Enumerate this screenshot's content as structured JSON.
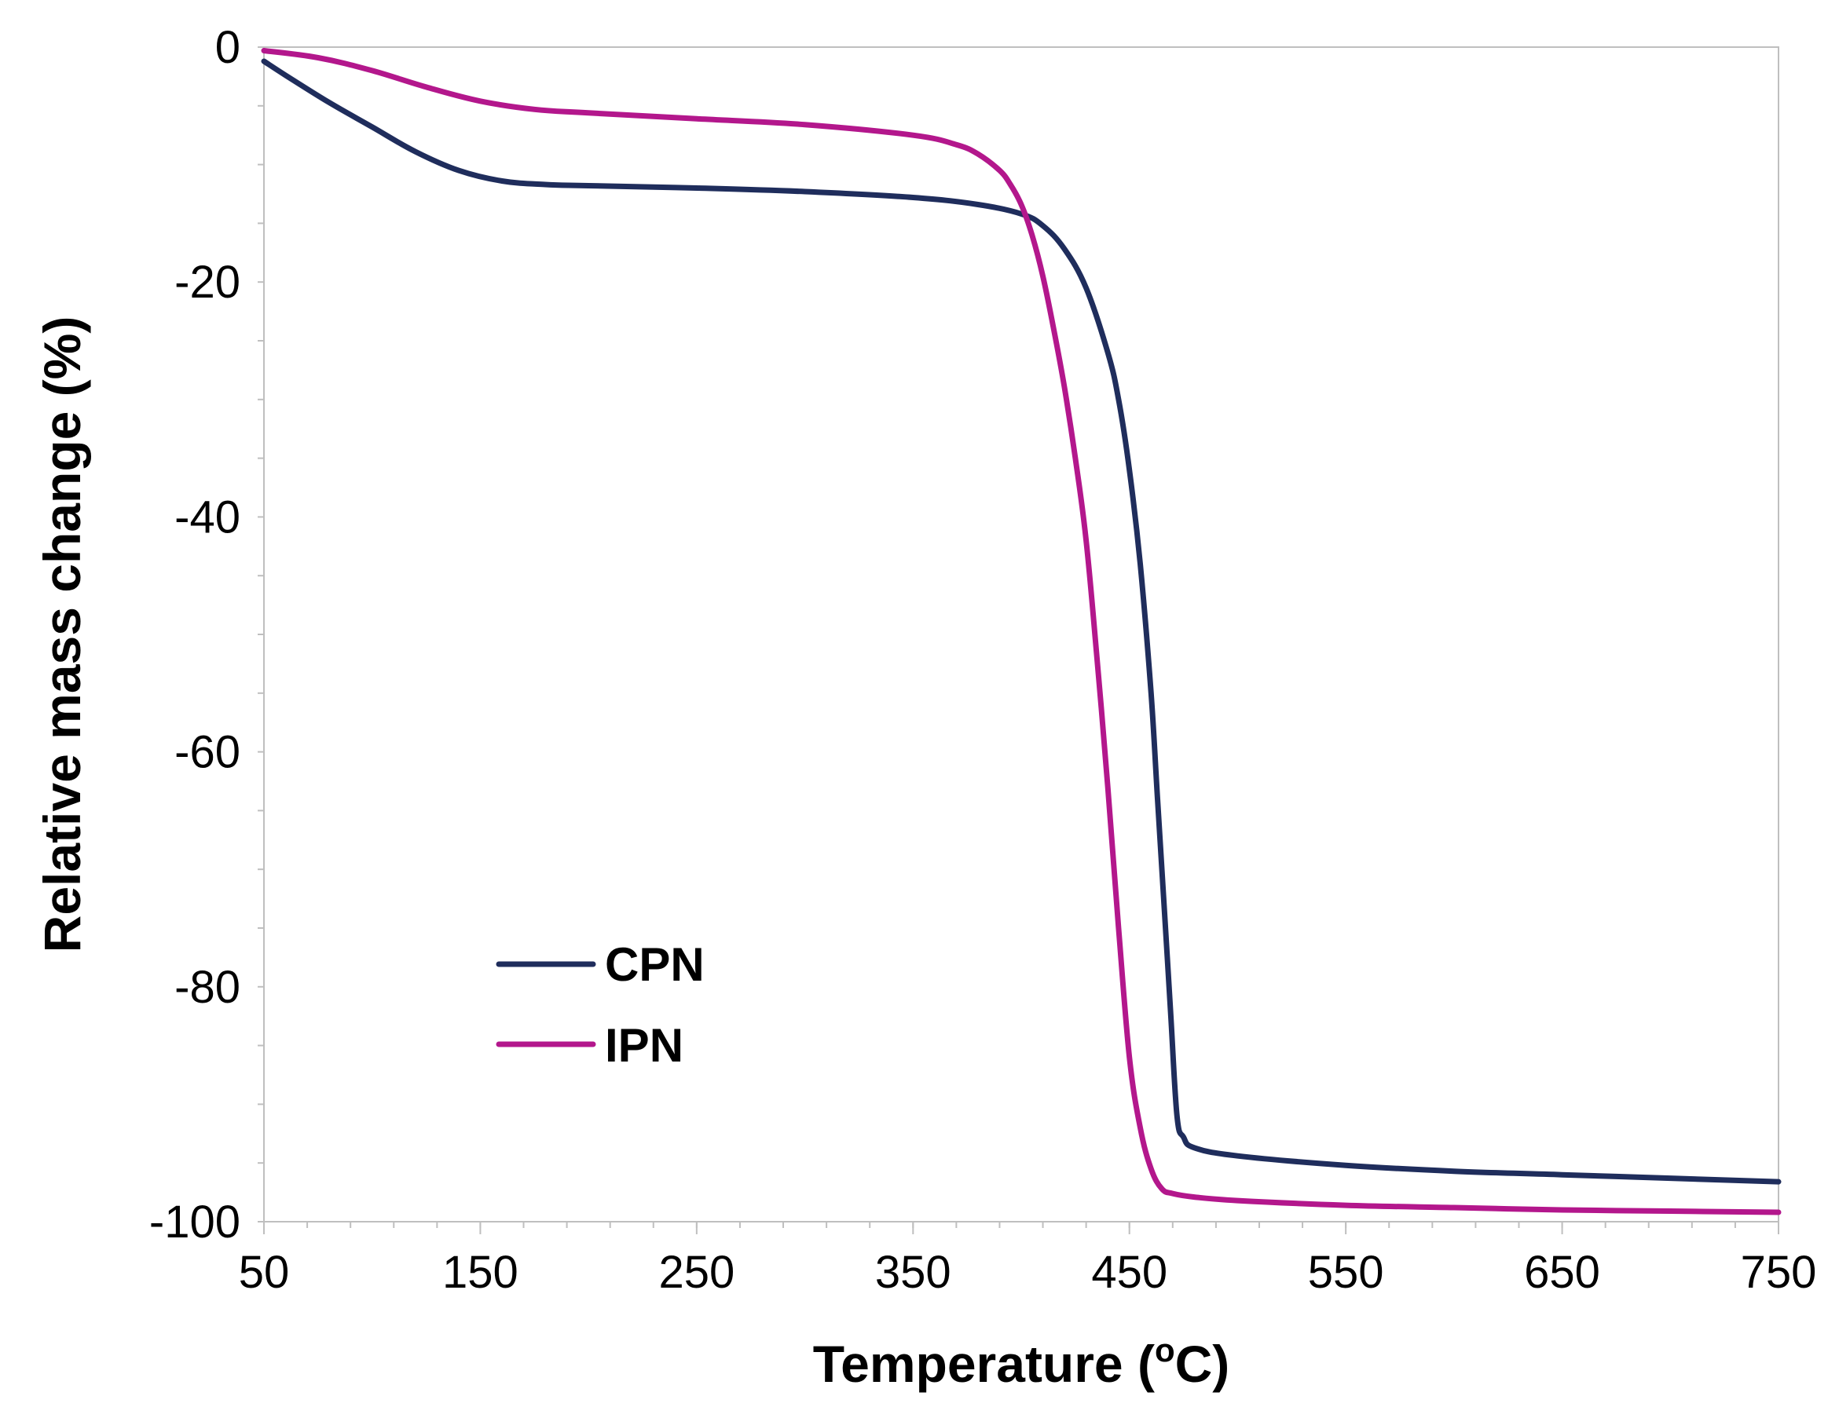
{
  "chart_data": {
    "type": "line",
    "title": "",
    "xlabel_main": "Temperature (",
    "xlabel_sup": "o",
    "xlabel_end": "C)",
    "ylabel": "Relative mass change (%)",
    "xlim": [
      50,
      750
    ],
    "ylim": [
      -100,
      0
    ],
    "x_ticks": [
      50,
      150,
      250,
      350,
      450,
      550,
      650,
      750
    ],
    "y_ticks": [
      0,
      -20,
      -40,
      -60,
      -80,
      -100
    ],
    "grid": false,
    "legend_placement": "lower-left",
    "series": [
      {
        "name": "CPN",
        "color": "#1f2d5c",
        "x": [
          50,
          60,
          80,
          100,
          120,
          140,
          160,
          180,
          200,
          250,
          300,
          350,
          380,
          400,
          410,
          420,
          430,
          440,
          445,
          450,
          455,
          460,
          463,
          466,
          469,
          472,
          475,
          480,
          500,
          550,
          600,
          650,
          700,
          750
        ],
        "y": [
          -1.2,
          -2.4,
          -4.7,
          -6.8,
          -8.9,
          -10.5,
          -11.4,
          -11.7,
          -11.8,
          -12.0,
          -12.3,
          -12.8,
          -13.4,
          -14.2,
          -15.2,
          -17.2,
          -20.5,
          -26,
          -30,
          -36,
          -44,
          -55,
          -64,
          -73,
          -82,
          -91,
          -92.8,
          -93.7,
          -94.4,
          -95.2,
          -95.7,
          -96.0,
          -96.3,
          -96.6
        ]
      },
      {
        "name": "IPN",
        "color": "#b3178c",
        "x": [
          50,
          75,
          100,
          125,
          150,
          175,
          200,
          250,
          300,
          350,
          370,
          380,
          390,
          395,
          400,
          405,
          410,
          415,
          420,
          425,
          430,
          435,
          440,
          445,
          450,
          455,
          460,
          465,
          470,
          480,
          500,
          550,
          600,
          650,
          700,
          750
        ],
        "y": [
          -0.3,
          -0.9,
          -2.0,
          -3.4,
          -4.6,
          -5.3,
          -5.6,
          -6.1,
          -6.6,
          -7.5,
          -8.3,
          -9.1,
          -10.5,
          -11.7,
          -13.4,
          -16,
          -19.5,
          -24,
          -29,
          -35,
          -42,
          -52,
          -63,
          -75,
          -86,
          -92,
          -95.5,
          -97.2,
          -97.6,
          -97.9,
          -98.2,
          -98.6,
          -98.8,
          -99.0,
          -99.1,
          -99.2
        ]
      }
    ]
  }
}
